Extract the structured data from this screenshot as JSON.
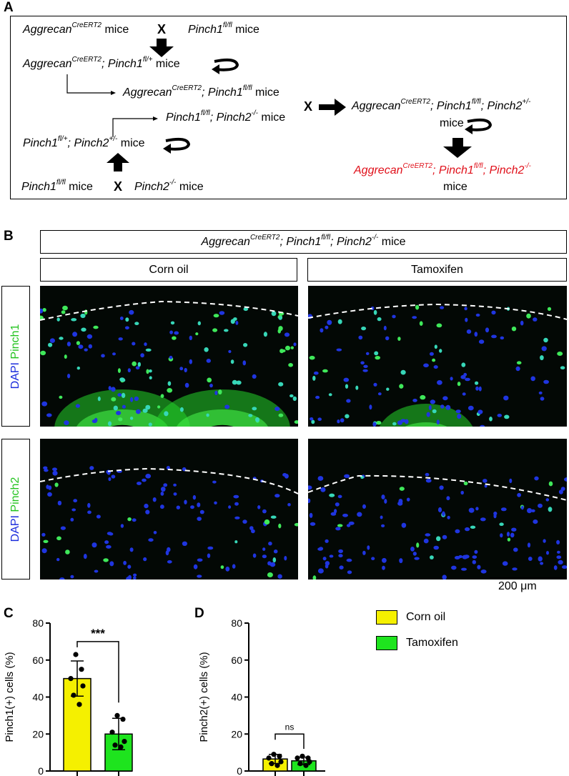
{
  "panel_labels": {
    "a": "A",
    "b": "B",
    "c": "C",
    "d": "D"
  },
  "panelA": {
    "cross_symbol": "X",
    "mice": "mice",
    "aggrecan": "Aggrecan",
    "creert2": "CreERT2",
    "pinch1": "Pinch1",
    "pinch2": "Pinch2",
    "fl_fl": "fl/fl",
    "fl_plus": "fl/+",
    "plus_minus": "+/-",
    "minus_minus": "-/-",
    "sep": "; "
  },
  "panelB": {
    "genotype_header": {
      "aggrecan": "Aggrecan",
      "creert2": "CreERT2",
      "pinch1": "Pinch1",
      "fl": "fl/fl",
      "pinch2": "Pinch2",
      "mm": "-/-",
      "mice": "mice"
    },
    "col_corn_oil": "Corn oil",
    "col_tamoxifen": "Tamoxifen",
    "row1": {
      "dapi": "DAPI",
      "marker": "Pinch1"
    },
    "row2": {
      "dapi": "DAPI",
      "marker": "Pinch2"
    },
    "scale_bar": "200 μm",
    "colors": {
      "dapi": "#1a2bdc",
      "marker": "#22c31e"
    }
  },
  "legend": {
    "items": [
      {
        "label": "Corn oil",
        "color": "#f5f000"
      },
      {
        "label": "Tamoxifen",
        "color": "#1ee41e"
      }
    ]
  },
  "chart_data": [
    {
      "type": "bar",
      "ylabel": "Pinch1(+) cells (%)",
      "ylim": [
        0,
        80
      ],
      "yticks": [
        "0",
        "20",
        "40",
        "60",
        "80"
      ],
      "categories": [
        "Corn oil",
        "Tamoxifen"
      ],
      "values": [
        50,
        20
      ],
      "errors": [
        9.5,
        8.5
      ],
      "colors": [
        "#f5f000",
        "#1ee41e"
      ],
      "points": [
        [
          63,
          55,
          50,
          46,
          41,
          36
        ],
        [
          30,
          28,
          21,
          16,
          14,
          13
        ]
      ],
      "significance": "***"
    },
    {
      "type": "bar",
      "ylabel": "Pinch2(+) cells (%)",
      "ylim": [
        0,
        80
      ],
      "yticks": [
        "0",
        "20",
        "40",
        "60",
        "80"
      ],
      "categories": [
        "Corn oil",
        "Tamoxifen"
      ],
      "values": [
        6.5,
        5.5
      ],
      "errors": [
        2.5,
        2
      ],
      "colors": [
        "#f5f000",
        "#1ee41e"
      ],
      "points": [
        [
          9,
          8,
          7,
          5,
          4,
          3
        ],
        [
          8,
          7,
          7,
          5,
          4,
          3
        ]
      ],
      "significance": "ns"
    }
  ]
}
